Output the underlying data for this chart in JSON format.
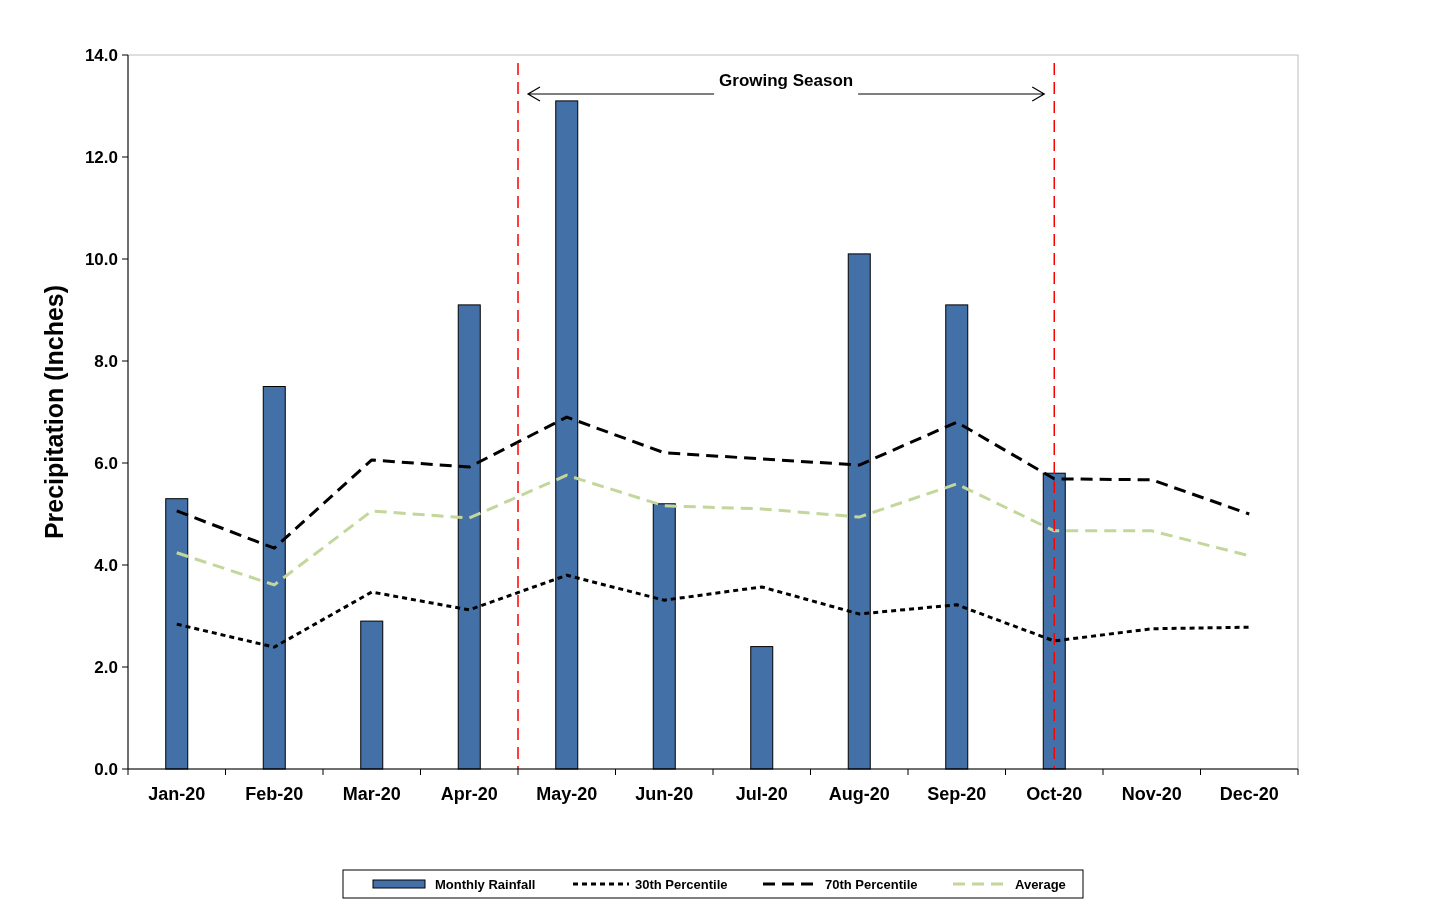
{
  "chart_data": {
    "type": "bar",
    "ylabel": "Precipitation (Inches)",
    "categories": [
      "Jan-20",
      "Feb-20",
      "Mar-20",
      "Apr-20",
      "May-20",
      "Jun-20",
      "Jul-20",
      "Aug-20",
      "Sep-20",
      "Oct-20",
      "Nov-20",
      "Dec-20"
    ],
    "series": [
      {
        "name": "Monthly Rainfall",
        "color": "#4470a8",
        "values": [
          5.3,
          7.5,
          2.9,
          9.1,
          13.1,
          5.2,
          2.4,
          10.1,
          9.1,
          5.8,
          null,
          null
        ]
      },
      {
        "name": "30th Percentile",
        "type": "line",
        "color": "#000000",
        "line_style": "dotted",
        "values": [
          2.84,
          2.39,
          3.47,
          3.12,
          3.8,
          3.31,
          3.57,
          3.04,
          3.22,
          2.51,
          2.75,
          2.78
        ]
      },
      {
        "name": "70th Percentile",
        "type": "line",
        "color": "#000000",
        "line_style": "dashed",
        "values": [
          5.06,
          4.33,
          6.06,
          5.92,
          6.9,
          6.2,
          6.08,
          5.96,
          6.8,
          5.69,
          5.67,
          5.0
        ]
      },
      {
        "name": "Average",
        "type": "line",
        "color": "#c3d69b",
        "line_style": "dashed",
        "values": [
          4.24,
          3.61,
          5.06,
          4.92,
          5.76,
          5.16,
          5.1,
          4.94,
          5.59,
          4.67,
          4.67,
          4.18
        ]
      }
    ],
    "ylim": [
      0,
      14
    ],
    "yticks": [
      {
        "value": 0,
        "label": "0.0"
      },
      {
        "value": 2,
        "label": "2.0"
      },
      {
        "value": 4,
        "label": "4.0"
      },
      {
        "value": 6,
        "label": "6.0"
      },
      {
        "value": 8,
        "label": "8.0"
      },
      {
        "value": 10,
        "label": "10.0"
      },
      {
        "value": 12,
        "label": "12.0"
      },
      {
        "value": 14,
        "label": "14.0"
      }
    ],
    "ref_lines": [
      {
        "axis": "x",
        "value": "Oct-20",
        "color": "#ff0000",
        "line_style": "dashed"
      }
    ],
    "annotations": [
      "Growing Season"
    ],
    "legend": "bottom",
    "grid": false
  }
}
